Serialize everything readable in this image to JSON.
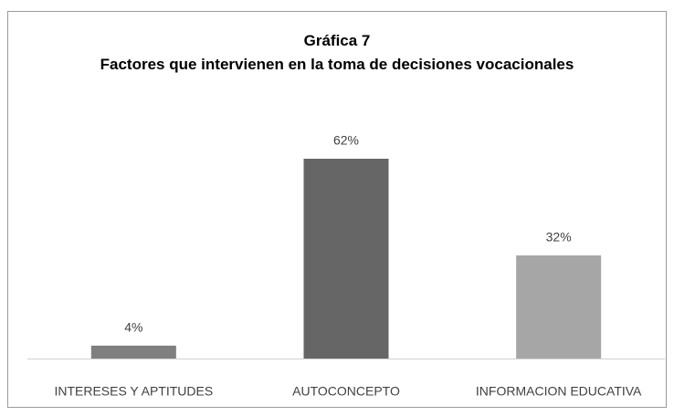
{
  "chart_data": {
    "type": "bar",
    "title": "Gráfica  7",
    "subtitle": "Factores que intervienen en la toma de decisiones vocacionales",
    "categories": [
      "INTERESES Y APTITUDES",
      "AUTOCONCEPTO",
      "INFORMACION EDUCATIVA"
    ],
    "values": [
      4,
      62,
      32
    ],
    "value_labels": [
      "4%",
      "62%",
      "32%"
    ],
    "colors": [
      "#7f7f7f",
      "#666666",
      "#a6a6a6"
    ]
  }
}
